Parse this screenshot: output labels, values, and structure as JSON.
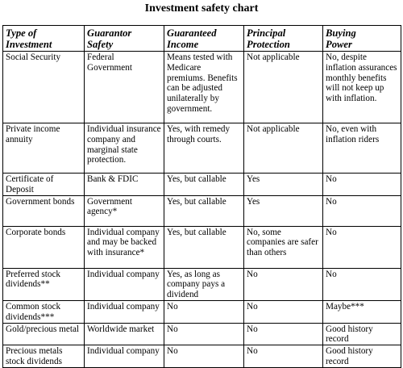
{
  "title": "Investment safety chart",
  "columns": [
    [
      "Type of",
      "Investment"
    ],
    [
      "Guarantor",
      "Safety"
    ],
    [
      "Guaranteed",
      "Income"
    ],
    [
      "Principal",
      "Protection"
    ],
    [
      "Buying",
      "Power"
    ]
  ],
  "rows": [
    {
      "type": "Social Security",
      "guarantor": "Federal Government",
      "income": "Means tested with Medicare premiums. Benefits can be adjusted unilaterally by government.",
      "principal": "Not applicable",
      "buying": "No, despite inflation assurances monthly benefits will not keep up with inflation."
    },
    {
      "type": "Private income annuity",
      "guarantor": "Individual insurance company and marginal state protection.",
      "income": "Yes, with remedy through courts.",
      "principal": "Not applicable",
      "buying": "No, even with inflation riders"
    },
    {
      "type": "Certificate of Deposit",
      "guarantor": "Bank & FDIC",
      "income": "Yes, but callable",
      "principal": "Yes",
      "buying": "No"
    },
    {
      "type": "Government bonds",
      "guarantor": "Government agency*",
      "income": "Yes, but callable",
      "principal": "Yes",
      "buying": "No"
    },
    {
      "type": "Corporate bonds",
      "guarantor": "Individual company and may be backed with insurance*",
      "income": "Yes, but callable",
      "principal": "No, some companies are safer than others",
      "buying": "No"
    },
    {
      "type": "Preferred stock dividends**",
      "guarantor": "Individual company",
      "income": "Yes, as long as company pays a dividend",
      "principal": "No",
      "buying": "No"
    },
    {
      "type": "Common stock dividends***",
      "guarantor": "Individual company",
      "income": "No",
      "principal": "No",
      "buying": "Maybe***"
    },
    {
      "type": "Gold/precious metal",
      "guarantor": "Worldwide market",
      "income": "No",
      "principal": "No",
      "buying": "Good history record"
    },
    {
      "type": "Precious metals stock dividends",
      "guarantor": "Individual company",
      "income": "No",
      "principal": "No",
      "buying": "Good history record"
    }
  ]
}
